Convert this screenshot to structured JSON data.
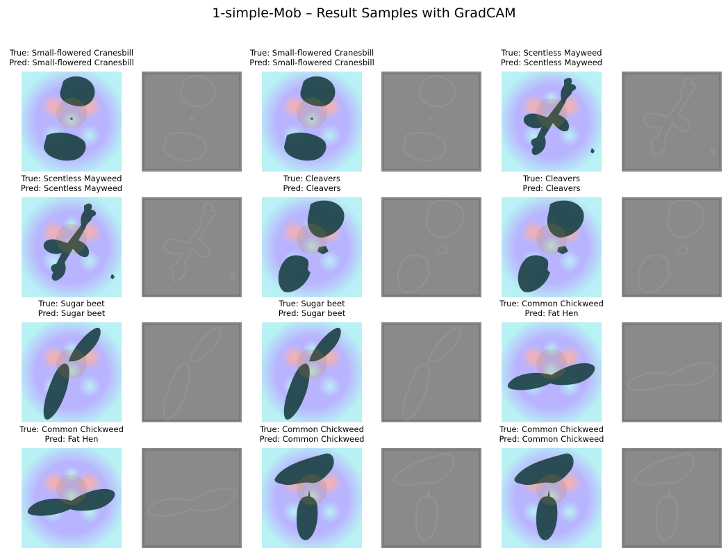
{
  "figure": {
    "title": "1-simple-Mob – Result Samples with GradCAM",
    "true_prefix": "True: ",
    "pred_prefix": "Pred: "
  },
  "samples": [
    {
      "true_label": "Small-flowered Cranesbill",
      "pred_label": "Small-flowered Cranesbill",
      "shape": "two-round-leaves"
    },
    {
      "true_label": "Small-flowered Cranesbill",
      "pred_label": "Small-flowered Cranesbill",
      "shape": "two-round-leaves"
    },
    {
      "true_label": "Scentless Mayweed",
      "pred_label": "Scentless Mayweed",
      "shape": "branching-seedling"
    },
    {
      "true_label": "Scentless Mayweed",
      "pred_label": "Scentless Mayweed",
      "shape": "branching-seedling"
    },
    {
      "true_label": "Cleavers",
      "pred_label": "Cleavers",
      "shape": "two-bitten-leaves"
    },
    {
      "true_label": "Cleavers",
      "pred_label": "Cleavers",
      "shape": "two-bitten-leaves"
    },
    {
      "true_label": "Sugar beet",
      "pred_label": "Sugar beet",
      "shape": "two-elongated-leaves"
    },
    {
      "true_label": "Sugar beet",
      "pred_label": "Sugar beet",
      "shape": "two-elongated-leaves"
    },
    {
      "true_label": "Common Chickweed",
      "pred_label": "Fat Hen",
      "shape": "horizontal-leaf-pair"
    },
    {
      "true_label": "Common Chickweed",
      "pred_label": "Fat Hen",
      "shape": "horizontal-leaf-pair"
    },
    {
      "true_label": "Common Chickweed",
      "pred_label": "Common Chickweed",
      "shape": "leaf-and-pod"
    },
    {
      "true_label": "Common Chickweed",
      "pred_label": "Common Chickweed",
      "shape": "leaf-and-pod"
    }
  ],
  "colors": {
    "background": "#ffffff",
    "heatmap_cool": "#b8f2f4",
    "heatmap_mid": "#b9b4ff",
    "heatmap_warm": "#ffb0a0",
    "leaf": "#1f4548",
    "leaf_highlight": "#c8781a",
    "gradient_map": "#8a8a8a"
  }
}
